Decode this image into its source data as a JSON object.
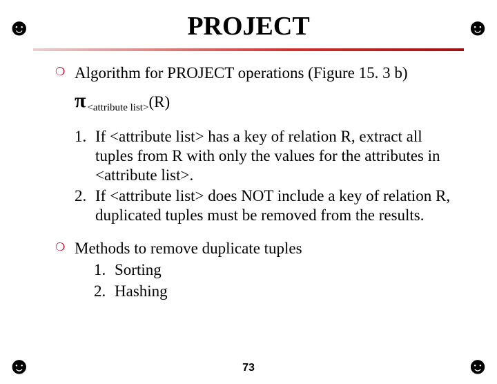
{
  "corners": {
    "glyph": "☻"
  },
  "title": "PROJECT",
  "bullet1": {
    "line1": "Algorithm for PROJECT operations (Figure 15. 3 b)",
    "pi_symbol": "π",
    "pi_sub": "<attribute list>",
    "pi_tail": "(R)"
  },
  "algo": [
    {
      "num": "1.",
      "text": " If <attribute list> has a key of relation R, extract all tuples from R with only the values for the attributes in <attribute list>."
    },
    {
      "num": "2.",
      "text": " If <attribute list> does NOT include a key of relation R, duplicated tuples must be removed from the results."
    }
  ],
  "bullet2": {
    "intro": "Methods to remove duplicate tuples",
    "items": [
      {
        "num": "1.",
        "text": " Sorting"
      },
      {
        "num": "2.",
        "text": " Hashing"
      }
    ]
  },
  "page_number": "73",
  "colors": {
    "bullet_marker": "#b00020",
    "rule_start": "#e8d0d0",
    "rule_end": "#a01010",
    "text": "#000000",
    "background": "#ffffff"
  }
}
